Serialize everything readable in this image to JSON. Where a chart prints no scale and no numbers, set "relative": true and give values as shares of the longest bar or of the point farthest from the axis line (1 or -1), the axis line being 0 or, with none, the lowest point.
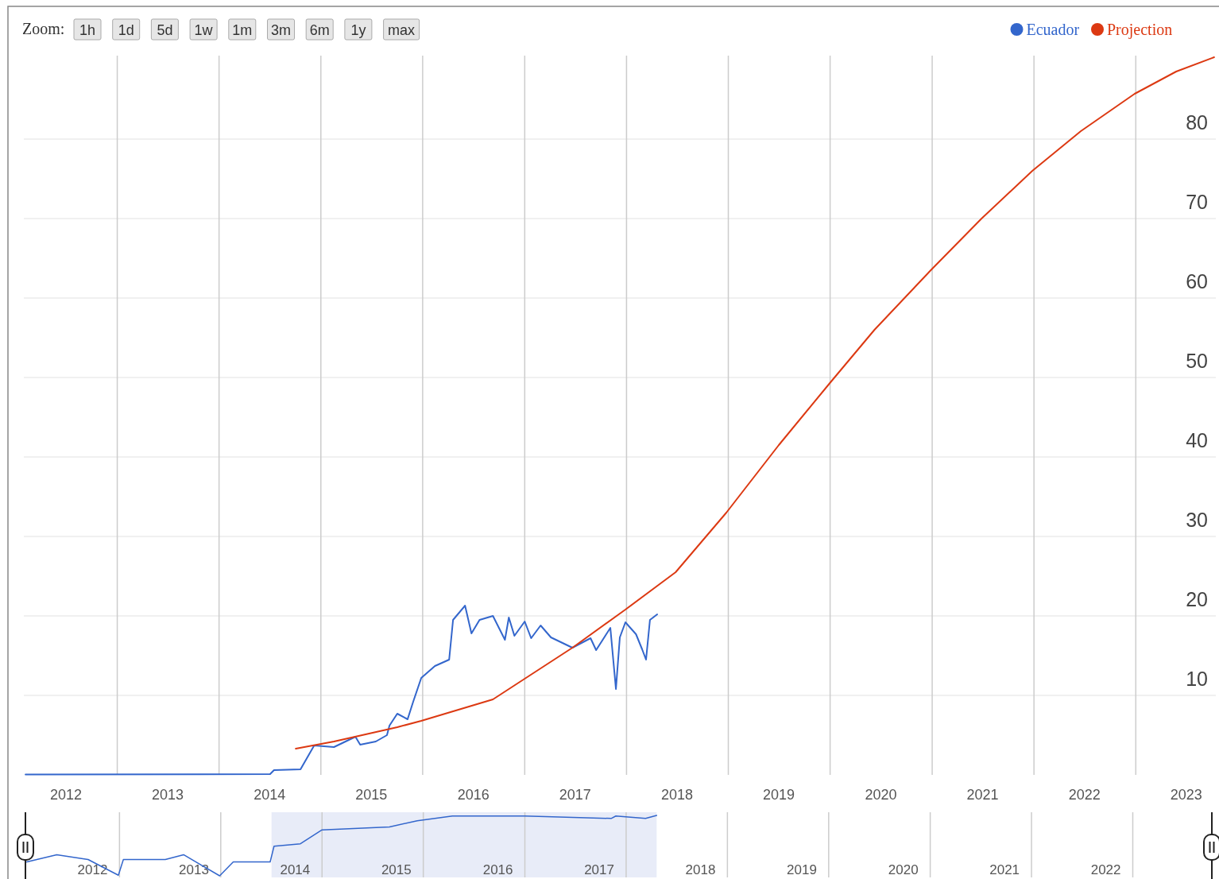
{
  "chart_data": [
    {
      "type": "line",
      "legend": "top right",
      "grid": true,
      "annotations": [
        "Zoom:",
        "1h",
        "1d",
        "5d",
        "1w",
        "1m",
        "3m",
        "6m",
        "1y",
        "max"
      ],
      "xlim": [
        "2012-02-01",
        "2023-10-15"
      ],
      "ylim": [
        0,
        90.5
      ],
      "xticks": [
        {
          "value": "2012-07-01",
          "label": "2012"
        },
        {
          "value": "2013-01-01",
          "label": null
        },
        {
          "value": "2013-07-01",
          "label": "2013"
        },
        {
          "value": "2014-01-01",
          "label": null
        },
        {
          "value": "2014-07-01",
          "label": "2014"
        },
        {
          "value": "2015-01-01",
          "label": null
        },
        {
          "value": "2015-07-01",
          "label": "2015"
        },
        {
          "value": "2016-01-01",
          "label": null
        },
        {
          "value": "2016-07-01",
          "label": "2016"
        },
        {
          "value": "2017-01-01",
          "label": null
        },
        {
          "value": "2017-07-01",
          "label": "2017"
        },
        {
          "value": "2018-01-01",
          "label": null
        },
        {
          "value": "2018-07-01",
          "label": "2018"
        },
        {
          "value": "2019-01-01",
          "label": null
        },
        {
          "value": "2019-07-01",
          "label": "2019"
        },
        {
          "value": "2020-01-01",
          "label": null
        },
        {
          "value": "2020-07-01",
          "label": "2020"
        },
        {
          "value": "2021-01-01",
          "label": null
        },
        {
          "value": "2021-07-01",
          "label": "2021"
        },
        {
          "value": "2022-01-01",
          "label": null
        },
        {
          "value": "2022-07-01",
          "label": "2022"
        },
        {
          "value": "2023-01-01",
          "label": null
        },
        {
          "value": "2023-07-01",
          "label": "2023"
        }
      ],
      "yticks": [
        10,
        20,
        30,
        40,
        50,
        60,
        70,
        80
      ],
      "series": [
        {
          "name": "Ecuador",
          "color": "#3366cc",
          "x": [
            "2012-02-07",
            "2014-07-03",
            "2014-07-17",
            "2014-10-20",
            "2014-12-08",
            "2015-02-17",
            "2015-05-05",
            "2015-05-22",
            "2015-07-17",
            "2015-08-26",
            "2015-09-04",
            "2015-10-02",
            "2015-11-08",
            "2015-11-28",
            "2015-12-27",
            "2016-02-14",
            "2016-04-05",
            "2016-04-19",
            "2016-06-01",
            "2016-06-24",
            "2016-07-23",
            "2016-09-09",
            "2016-10-22",
            "2016-11-05",
            "2016-11-25",
            "2017-01-01",
            "2017-01-24",
            "2017-02-27",
            "2017-04-05",
            "2017-06-21",
            "2017-08-25",
            "2017-09-14",
            "2017-11-04",
            "2017-11-24",
            "2017-12-08",
            "2017-12-28",
            "2018-02-04",
            "2018-02-26",
            "2018-03-12",
            "2018-03-26",
            "2018-04-21"
          ],
          "values": [
            0.05,
            0.1,
            0.6,
            0.7,
            3.7,
            3.5,
            4.8,
            3.8,
            4.2,
            5.0,
            6.2,
            7.7,
            7.0,
            9.2,
            12.2,
            13.7,
            14.5,
            19.5,
            21.3,
            17.8,
            19.5,
            20,
            17,
            19.8,
            17.5,
            19.3,
            17.2,
            18.8,
            17.3,
            16,
            17.2,
            15.7,
            18.5,
            10.8,
            17.3,
            19.2,
            17.7,
            15.8,
            14.5,
            19.5,
            20.2
          ]
        },
        {
          "name": "Projection",
          "color": "#dc3912",
          "x": [
            "2014-10-03",
            "2015-02-17",
            "2015-10-02",
            "2015-12-27",
            "2016-09-09",
            "2017-06-21",
            "2017-12-28",
            "2018-06-26",
            "2018-12-25",
            "2019-07-01",
            "2019-12-31",
            "2020-06-08",
            "2020-12-27",
            "2021-06-27",
            "2021-12-26",
            "2022-06-18",
            "2022-12-28",
            "2023-05-26",
            "2023-10-09"
          ],
          "values": [
            3.3,
            4.2,
            6.0,
            6.8,
            9.5,
            16,
            20.8,
            25.5,
            33,
            41.5,
            49.3,
            56,
            63.5,
            70,
            76,
            81,
            85.7,
            88.5,
            90.3
          ]
        }
      ]
    },
    {
      "type": "line",
      "relative": true,
      "grid": "x",
      "xlim": [
        "2012-01-28",
        "2023-10-13"
      ],
      "xticks": [
        {
          "value": "2012-09-26",
          "label": "2012"
        },
        {
          "value": "2013-01-01",
          "label": null
        },
        {
          "value": "2013-09-26",
          "label": "2013"
        },
        {
          "value": "2014-01-01",
          "label": null
        },
        {
          "value": "2014-09-26",
          "label": "2014"
        },
        {
          "value": "2015-01-01",
          "label": null
        },
        {
          "value": "2015-09-26",
          "label": "2015"
        },
        {
          "value": "2016-01-01",
          "label": null
        },
        {
          "value": "2016-09-26",
          "label": "2016"
        },
        {
          "value": "2017-01-01",
          "label": null
        },
        {
          "value": "2017-09-26",
          "label": "2017"
        },
        {
          "value": "2018-01-01",
          "label": null
        },
        {
          "value": "2018-09-26",
          "label": "2018"
        },
        {
          "value": "2019-01-01",
          "label": null
        },
        {
          "value": "2019-09-26",
          "label": "2019"
        },
        {
          "value": "2020-01-01",
          "label": null
        },
        {
          "value": "2020-09-26",
          "label": "2020"
        },
        {
          "value": "2021-01-01",
          "label": null
        },
        {
          "value": "2021-09-26",
          "label": "2021"
        },
        {
          "value": "2022-01-01",
          "label": null
        },
        {
          "value": "2022-09-26",
          "label": "2022"
        },
        {
          "value": "2023-01-01",
          "label": null
        }
      ],
      "bands": [
        {
          "axis": "x",
          "from": "2014-07-03",
          "to": "2018-04-21",
          "color": "#e8ecf8"
        }
      ],
      "series": [
        {
          "color": "#3366cc",
          "x": [
            "2012-02-02",
            "2012-05-20",
            "2012-09-10",
            "2012-12-28",
            "2013-01-15",
            "2013-06-15",
            "2013-08-20",
            "2013-12-28",
            "2014-02-15",
            "2014-06-28",
            "2014-07-12",
            "2014-10-15",
            "2015-01-01",
            "2015-09-01",
            "2015-12-10",
            "2016-04-15",
            "2017-01-01",
            "2017-11-08",
            "2017-11-25",
            "2018-03-12",
            "2018-04-21"
          ],
          "values": [
            0.23,
            0.35,
            0.27,
            0.01,
            0.27,
            0.27,
            0.35,
            0,
            0.23,
            0.23,
            0.49,
            0.53,
            0.76,
            0.81,
            0.91,
            0.99,
            0.99,
            0.95,
            0.99,
            0.95,
            1.0
          ]
        }
      ]
    }
  ]
}
